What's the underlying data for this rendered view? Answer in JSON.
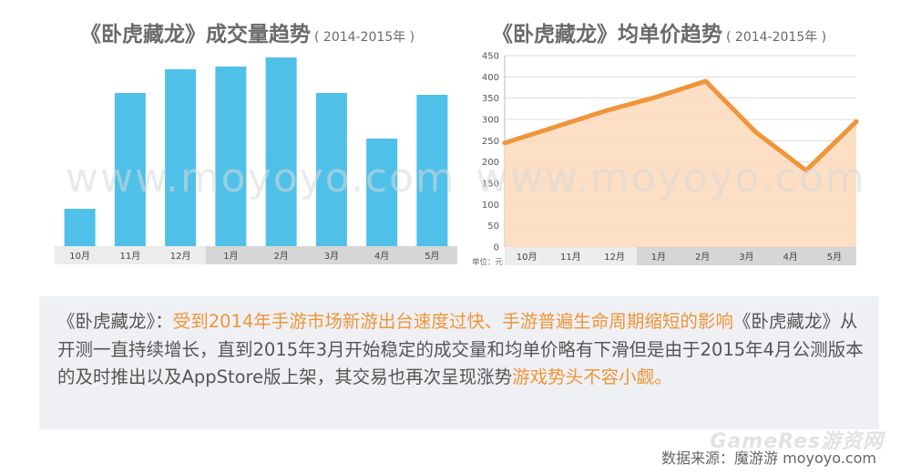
{
  "titles": {
    "volume_main": "《卧虎藏龙》成交量趋势",
    "volume_sub": "( 2014-2015年 )",
    "price_main": "《卧虎藏龙》均单价趋势",
    "price_sub": "( 2014-2015年 )"
  },
  "watermark": "www.moyoyo.com",
  "chart_data": [
    {
      "type": "bar",
      "title": "《卧虎藏龙》成交量趋势 ( 2014-2015年 )",
      "categories": [
        "10月",
        "11月",
        "12月",
        "1月",
        "2月",
        "3月",
        "4月",
        "5月"
      ],
      "values": [
        41,
        168,
        194,
        197,
        207,
        168,
        118,
        166
      ],
      "ylim": [
        0,
        210
      ],
      "grid": false,
      "color": "#4fc1e9"
    },
    {
      "type": "area",
      "title": "《卧虎藏龙》均单价趋势 ( 2014-2015年 )",
      "categories": [
        "10月",
        "11月",
        "12月",
        "1月",
        "2月",
        "3月",
        "4月",
        "5月"
      ],
      "values": [
        245,
        282,
        320,
        352,
        390,
        270,
        180,
        295
      ],
      "ylim": [
        0,
        450
      ],
      "yticks": [
        0,
        50,
        100,
        150,
        200,
        250,
        300,
        350,
        400,
        450
      ],
      "unit_label": "单位：元",
      "grid": true,
      "line_color": "#f0953a",
      "fill_color": "#fbd9bb"
    }
  ],
  "description": {
    "prefix": "《卧虎藏龙》：",
    "highlight1": "受到2014年手游市场新游出台速度过快、手游普遍生命周期缩短的影响",
    "middle": "《卧虎藏龙》从开测一直持续增长，直到2015年3月开始稳定的成交量和均单价略有下滑但是由于2015年4月公测版本的及时推出以及AppStore版上架，其交易也再次呈现涨势",
    "highlight2": "游戏势头不容小觑。"
  },
  "source": "数据来源：魔游游 moyoyo.com",
  "logo_text": "GameRes游资网"
}
